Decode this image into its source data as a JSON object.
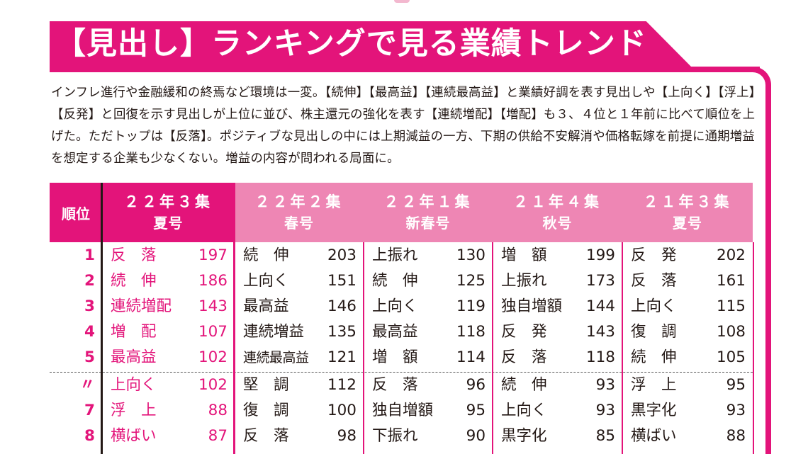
{
  "title": "【見出し】ランキングで見る業績トレンド",
  "intro": "インフレ進行や金融緩和の終焉など環境は一変。【続伸】【最高益】【連続最高益】と業績好調を表す見出しや【上向く】【浮上】【反発】と回復を示す見出しが上位に並び、株主還元の強化を表す【連続増配】【増配】も３、４位と１年前に比べて順位を上げた。ただトップは【反落】。ポジティブな見出しの中には上期減益の一方、下期の供給不安解消や価格転嫁を前提に通期増益を想定する企業も少なくない。増益の内容が問われる局面に。",
  "colors": {
    "accent": "#e3147a",
    "header_light": "#ee86b4",
    "row_pink": "#e3147a",
    "text": "#231815"
  },
  "table": {
    "rank_header": "順位",
    "ranks": [
      "1",
      "2",
      "3",
      "4",
      "5",
      "〃",
      "7",
      "8"
    ],
    "columns": [
      {
        "header_line1": "２２年３集",
        "header_line2": "夏号",
        "highlight": true,
        "rows": [
          {
            "name": "反　落",
            "value": "197"
          },
          {
            "name": "続　伸",
            "value": "186"
          },
          {
            "name": "連続増配",
            "value": "143"
          },
          {
            "name": "増　配",
            "value": "107"
          },
          {
            "name": "最高益",
            "value": "102"
          },
          {
            "name": "上向く",
            "value": "102"
          },
          {
            "name": "浮　上",
            "value": "88"
          },
          {
            "name": "横ばい",
            "value": "87"
          }
        ]
      },
      {
        "header_line1": "２２年２集",
        "header_line2": "春号",
        "highlight": false,
        "rows": [
          {
            "name": "続　伸",
            "value": "203"
          },
          {
            "name": "上向く",
            "value": "151"
          },
          {
            "name": "最高益",
            "value": "146"
          },
          {
            "name": "連続増益",
            "value": "135"
          },
          {
            "name": "連続最高益",
            "value": "121"
          },
          {
            "name": "堅　調",
            "value": "112"
          },
          {
            "name": "復　調",
            "value": "100"
          },
          {
            "name": "反　落",
            "value": "98"
          }
        ]
      },
      {
        "header_line1": "２２年１集",
        "header_line2": "新春号",
        "highlight": false,
        "rows": [
          {
            "name": "上振れ",
            "value": "130"
          },
          {
            "name": "続　伸",
            "value": "125"
          },
          {
            "name": "上向く",
            "value": "119"
          },
          {
            "name": "最高益",
            "value": "118"
          },
          {
            "name": "増　額",
            "value": "114"
          },
          {
            "name": "反　落",
            "value": "96"
          },
          {
            "name": "独自増額",
            "value": "95"
          },
          {
            "name": "下振れ",
            "value": "90"
          }
        ]
      },
      {
        "header_line1": "２１年４集",
        "header_line2": "秋号",
        "highlight": false,
        "rows": [
          {
            "name": "増　額",
            "value": "199"
          },
          {
            "name": "上振れ",
            "value": "173"
          },
          {
            "name": "独自増額",
            "value": "144"
          },
          {
            "name": "反　発",
            "value": "143"
          },
          {
            "name": "反　落",
            "value": "118"
          },
          {
            "name": "続　伸",
            "value": "93"
          },
          {
            "name": "上向く",
            "value": "93"
          },
          {
            "name": "黒字化",
            "value": "85"
          }
        ]
      },
      {
        "header_line1": "２１年３集",
        "header_line2": "夏号",
        "highlight": false,
        "rows": [
          {
            "name": "反　発",
            "value": "202"
          },
          {
            "name": "反　落",
            "value": "161"
          },
          {
            "name": "上向く",
            "value": "115"
          },
          {
            "name": "復　調",
            "value": "108"
          },
          {
            "name": "続　伸",
            "value": "105"
          },
          {
            "name": "浮　上",
            "value": "95"
          },
          {
            "name": "黒字化",
            "value": "93"
          },
          {
            "name": "横ばい",
            "value": "88"
          }
        ]
      }
    ]
  }
}
